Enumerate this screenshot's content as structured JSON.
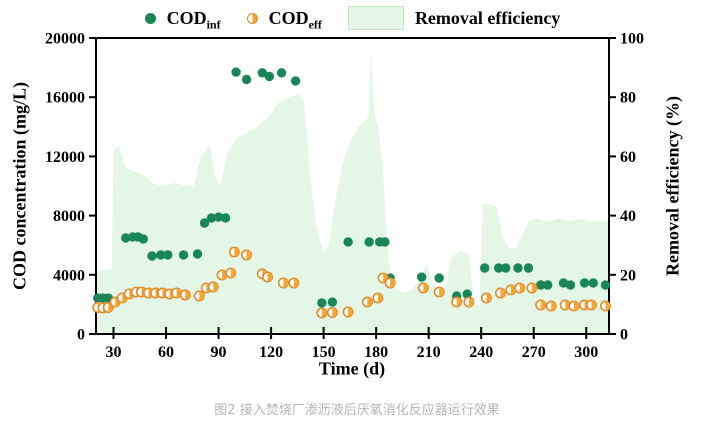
{
  "legend": {
    "cod_inf": {
      "label": "COD",
      "sub": "inf"
    },
    "cod_eff": {
      "label": "COD",
      "sub": "eff"
    },
    "area": {
      "label": "Removal efficiency"
    }
  },
  "colors": {
    "cod_inf_fill": "#1a8557",
    "cod_eff_fill": "#f5a632",
    "cod_eff_stroke": "#e0892b",
    "area_fill": "#e4f6e6",
    "axis": "#000000",
    "caption_text": "#b4b4b4"
  },
  "caption": "图2 接入焚烧厂渗沥液后厌氧消化反应器运行效果",
  "chart_data": {
    "type": "scatter",
    "title": "",
    "xlabel": "Time (d)",
    "ylabel_left": "COD concentration (mg/L)",
    "ylabel_right": "Removal efficiency (%)",
    "x_range": [
      20,
      313
    ],
    "y_left_range": [
      0,
      20000
    ],
    "y_right_range": [
      0,
      100
    ],
    "x_ticks": [
      30,
      60,
      90,
      120,
      150,
      180,
      210,
      240,
      270,
      300
    ],
    "y_left_ticks": [
      0,
      4000,
      8000,
      12000,
      16000,
      20000
    ],
    "y_right_ticks": [
      0,
      20,
      40,
      60,
      80,
      100
    ],
    "grid": false,
    "legend_position": "top",
    "series": [
      {
        "name": "COD_inf",
        "type": "scatter",
        "axis": "left",
        "marker": "filled-circle-green",
        "points": [
          [
            21,
            2430
          ],
          [
            24,
            2430
          ],
          [
            27,
            2430
          ],
          [
            37,
            6490
          ],
          [
            41,
            6560
          ],
          [
            44,
            6560
          ],
          [
            47,
            6420
          ],
          [
            52,
            5270
          ],
          [
            57,
            5340
          ],
          [
            61,
            5340
          ],
          [
            70,
            5340
          ],
          [
            78,
            5410
          ],
          [
            82,
            7500
          ],
          [
            86,
            7840
          ],
          [
            90,
            7900
          ],
          [
            94,
            7840
          ],
          [
            100,
            17700
          ],
          [
            106,
            17200
          ],
          [
            115,
            17650
          ],
          [
            119,
            17400
          ],
          [
            126,
            17650
          ],
          [
            134,
            17100
          ],
          [
            149,
            2100
          ],
          [
            155,
            2160
          ],
          [
            164,
            6220
          ],
          [
            176,
            6220
          ],
          [
            182,
            6220
          ],
          [
            185,
            6220
          ],
          [
            188,
            3780
          ],
          [
            206,
            3850
          ],
          [
            216,
            3780
          ],
          [
            226,
            2570
          ],
          [
            232,
            2700
          ],
          [
            242,
            4460
          ],
          [
            250,
            4460
          ],
          [
            254,
            4460
          ],
          [
            261,
            4460
          ],
          [
            267,
            4460
          ],
          [
            274,
            3310
          ],
          [
            278,
            3310
          ],
          [
            287,
            3450
          ],
          [
            291,
            3310
          ],
          [
            299,
            3450
          ],
          [
            304,
            3450
          ],
          [
            311,
            3310
          ]
        ]
      },
      {
        "name": "COD_eff",
        "type": "scatter",
        "axis": "left",
        "marker": "half-circle-orange",
        "points": [
          [
            21,
            1790
          ],
          [
            24,
            1760
          ],
          [
            27,
            1790
          ],
          [
            31,
            2160
          ],
          [
            35,
            2430
          ],
          [
            39,
            2700
          ],
          [
            43,
            2840
          ],
          [
            46,
            2840
          ],
          [
            50,
            2770
          ],
          [
            54,
            2770
          ],
          [
            58,
            2770
          ],
          [
            62,
            2700
          ],
          [
            66,
            2770
          ],
          [
            71,
            2640
          ],
          [
            79,
            2570
          ],
          [
            83,
            3110
          ],
          [
            87,
            3180
          ],
          [
            92,
            3990
          ],
          [
            97,
            4120
          ],
          [
            99,
            5540
          ],
          [
            106,
            5340
          ],
          [
            115,
            4060
          ],
          [
            118,
            3850
          ],
          [
            127,
            3450
          ],
          [
            133,
            3450
          ],
          [
            149,
            1420
          ],
          [
            155,
            1450
          ],
          [
            164,
            1490
          ],
          [
            175,
            2160
          ],
          [
            181,
            2430
          ],
          [
            184,
            3780
          ],
          [
            188,
            3450
          ],
          [
            207,
            3110
          ],
          [
            216,
            2840
          ],
          [
            226,
            2160
          ],
          [
            233,
            2160
          ],
          [
            243,
            2430
          ],
          [
            251,
            2770
          ],
          [
            257,
            2980
          ],
          [
            262,
            3110
          ],
          [
            269,
            3110
          ],
          [
            274,
            1960
          ],
          [
            280,
            1890
          ],
          [
            288,
            1960
          ],
          [
            293,
            1890
          ],
          [
            299,
            1960
          ],
          [
            303,
            1960
          ],
          [
            311,
            1890
          ]
        ]
      },
      {
        "name": "Removal efficiency",
        "type": "area",
        "axis": "right",
        "points": [
          [
            20,
            21
          ],
          [
            29,
            22
          ],
          [
            30,
            62
          ],
          [
            33,
            64
          ],
          [
            37,
            56
          ],
          [
            42,
            55
          ],
          [
            47,
            54
          ],
          [
            52,
            51
          ],
          [
            58,
            50
          ],
          [
            65,
            51
          ],
          [
            72,
            50
          ],
          [
            76,
            50
          ],
          [
            80,
            60
          ],
          [
            85,
            64
          ],
          [
            88,
            53
          ],
          [
            91,
            50
          ],
          [
            95,
            61
          ],
          [
            100,
            66
          ],
          [
            106,
            68
          ],
          [
            112,
            70
          ],
          [
            118,
            73
          ],
          [
            124,
            78
          ],
          [
            130,
            80
          ],
          [
            136,
            81
          ],
          [
            139,
            78
          ],
          [
            142,
            55
          ],
          [
            146,
            36
          ],
          [
            150,
            27
          ],
          [
            153,
            30
          ],
          [
            157,
            46
          ],
          [
            161,
            58
          ],
          [
            166,
            66
          ],
          [
            170,
            70
          ],
          [
            174,
            72
          ],
          [
            176,
            74
          ],
          [
            177,
            97
          ],
          [
            179,
            74
          ],
          [
            181,
            70
          ],
          [
            184,
            55
          ],
          [
            187,
            25
          ],
          [
            190,
            16
          ],
          [
            195,
            14
          ],
          [
            200,
            15
          ],
          [
            205,
            18
          ],
          [
            209,
            24
          ],
          [
            212,
            17
          ],
          [
            216,
            14
          ],
          [
            220,
            16
          ],
          [
            223,
            26
          ],
          [
            228,
            28
          ],
          [
            233,
            27
          ],
          [
            236,
            10
          ],
          [
            239,
            9
          ],
          [
            241,
            44
          ],
          [
            245,
            44
          ],
          [
            249,
            43
          ],
          [
            252,
            33
          ],
          [
            256,
            29
          ],
          [
            260,
            29
          ],
          [
            264,
            34
          ],
          [
            267,
            38
          ],
          [
            272,
            39
          ],
          [
            278,
            38
          ],
          [
            284,
            39
          ],
          [
            290,
            38
          ],
          [
            296,
            39
          ],
          [
            302,
            38
          ],
          [
            308,
            38
          ],
          [
            313,
            38
          ]
        ]
      }
    ]
  }
}
